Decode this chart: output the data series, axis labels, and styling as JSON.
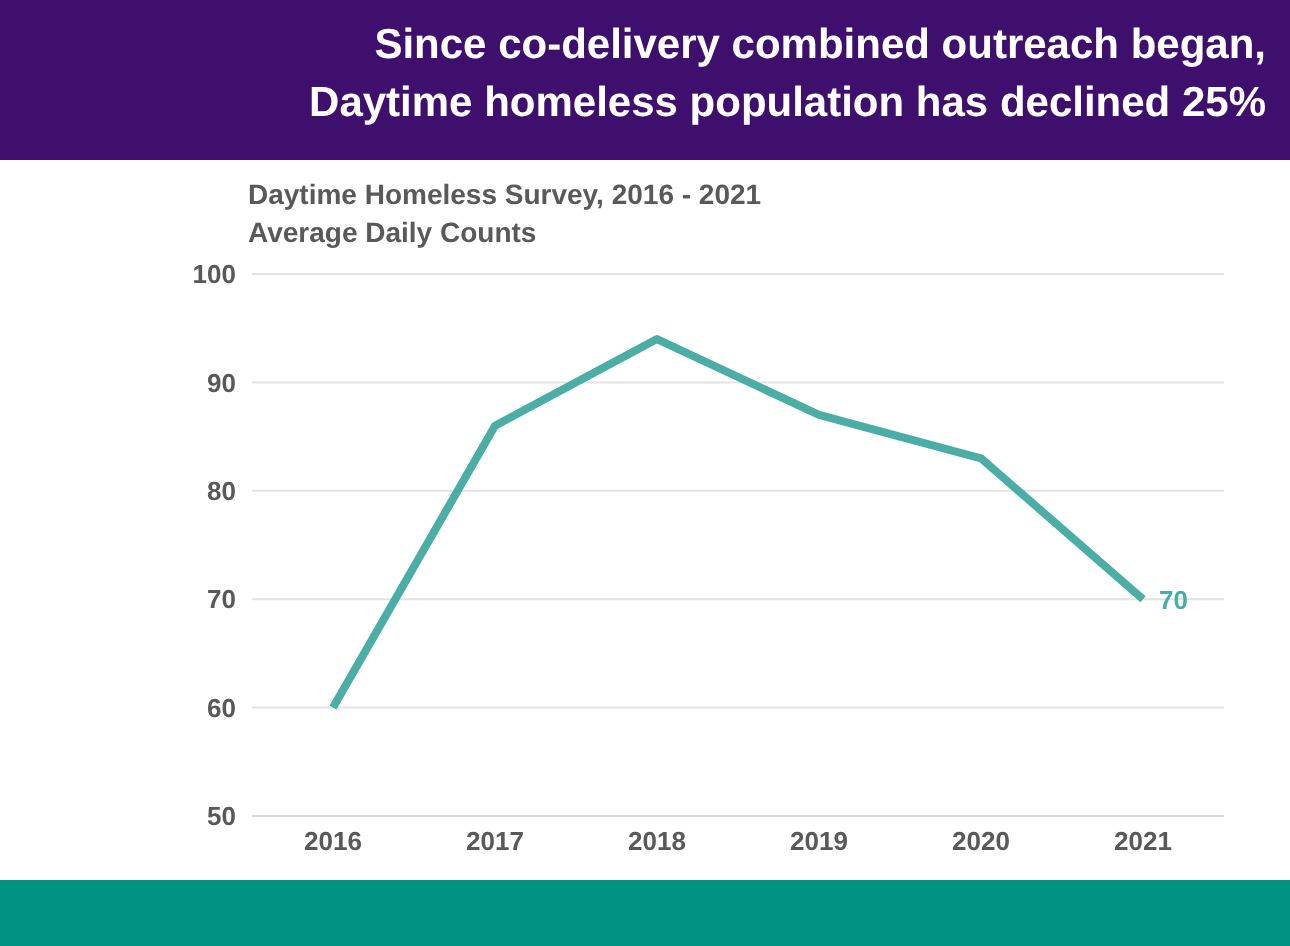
{
  "chart_data": {
    "type": "line",
    "title": "Since co-delivery combined outreach began,\nDaytime homeless population has declined 25%",
    "subtitle": "Daytime Homeless Survey, 2016 - 2021\nAverage Daily Counts",
    "categories": [
      "2016",
      "2017",
      "2018",
      "2019",
      "2020",
      "2021"
    ],
    "series": [
      {
        "color": "#4aaea6",
        "values": [
          60,
          86,
          94,
          87,
          83,
          70
        ],
        "value_labels": [
          null,
          null,
          null,
          null,
          null,
          "70"
        ]
      }
    ],
    "ylim": [
      50,
      100
    ],
    "yticks": [
      50,
      60,
      70,
      80,
      90,
      100
    ],
    "grid": "y"
  }
}
